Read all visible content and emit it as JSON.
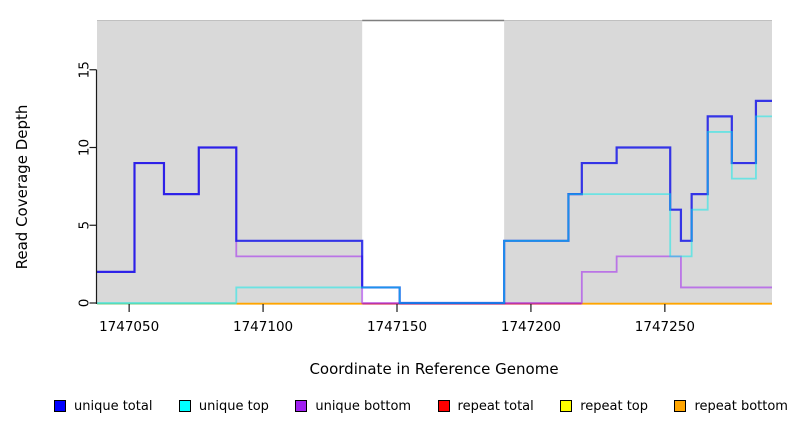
{
  "figure": {
    "background": "#ffffff"
  },
  "legend": {
    "position": "bottom",
    "items": [
      {
        "label": "unique total",
        "color": "#0000FF"
      },
      {
        "label": "unique top",
        "color": "#00FFFF"
      },
      {
        "label": "unique bottom",
        "color": "#A020F0"
      },
      {
        "label": "repeat total",
        "color": "#FF0000"
      },
      {
        "label": "repeat top",
        "color": "#FFFF00"
      },
      {
        "label": "repeat bottom",
        "color": "#FFA500"
      }
    ]
  },
  "chart_data": {
    "type": "line",
    "subtype": "step-coverage",
    "title": "",
    "xlabel": "Coordinate in Reference Genome",
    "ylabel": "Read Coverage Depth",
    "xlim": [
      1747038,
      1747290
    ],
    "ylim": [
      0,
      18.2
    ],
    "x_ticks": [
      1747050,
      1747100,
      1747150,
      1747200,
      1747250
    ],
    "y_ticks": [
      0,
      5,
      10,
      15
    ],
    "grid": false,
    "legend_position": "bottom",
    "shaded_regions": [
      {
        "x0": 1747038,
        "x1": 1747137,
        "color": "#d9d9d9",
        "edge_color": "#c0c0c0"
      },
      {
        "x0": 1747190,
        "x1": 1747290,
        "color": "#d9d9d9",
        "edge_color": "#c0c0c0"
      }
    ],
    "gap_top_edge": {
      "x0": 1747137,
      "x1": 1747190,
      "color": "#7f7f7f"
    },
    "draw_order": [
      "unique bottom",
      "unique total",
      "unique top"
    ],
    "series": [
      {
        "name": "unique total",
        "color": "#0000FF",
        "render_color": "rgba(10,10,232,0.8)",
        "width": 2.2,
        "steps": [
          [
            1747038,
            2
          ],
          [
            1747052,
            9
          ],
          [
            1747063,
            7
          ],
          [
            1747076,
            10
          ],
          [
            1747090,
            4
          ],
          [
            1747137,
            1
          ],
          [
            1747151,
            0
          ],
          [
            1747190,
            4
          ],
          [
            1747214,
            7
          ],
          [
            1747219,
            9
          ],
          [
            1747232,
            10
          ],
          [
            1747252,
            6
          ],
          [
            1747256,
            4
          ],
          [
            1747260,
            7
          ],
          [
            1747266,
            12
          ],
          [
            1747275,
            9
          ],
          [
            1747284,
            13
          ]
        ],
        "x_end": 1747290
      },
      {
        "name": "unique top",
        "color": "#00FFFF",
        "render_color": "rgba(0,235,235,0.5)",
        "width": 1.8,
        "steps": [
          [
            1747038,
            0
          ],
          [
            1747090,
            1
          ],
          [
            1747151,
            0
          ],
          [
            1747190,
            4
          ],
          [
            1747214,
            7
          ],
          [
            1747252,
            3
          ],
          [
            1747260,
            6
          ],
          [
            1747266,
            11
          ],
          [
            1747275,
            8
          ],
          [
            1747284,
            12
          ]
        ],
        "x_end": 1747290
      },
      {
        "name": "unique bottom",
        "color": "#A020F0",
        "render_color": "rgba(160,32,240,0.55)",
        "width": 1.8,
        "steps": [
          [
            1747038,
            2
          ],
          [
            1747052,
            9
          ],
          [
            1747063,
            7
          ],
          [
            1747076,
            10
          ],
          [
            1747090,
            3
          ],
          [
            1747137,
            0
          ],
          [
            1747219,
            2
          ],
          [
            1747232,
            3
          ],
          [
            1747256,
            1
          ]
        ],
        "x_end": 1747290
      },
      {
        "name": "repeat total",
        "color": "#FF0000",
        "steps": [
          [
            1747038,
            0
          ]
        ],
        "x_end": 1747290
      },
      {
        "name": "repeat top",
        "color": "#FFFF00",
        "steps": [
          [
            1747038,
            0
          ]
        ],
        "x_end": 1747290
      },
      {
        "name": "repeat bottom",
        "color": "#FFA500",
        "steps": [
          [
            1747038,
            0
          ]
        ],
        "x_end": 1747290
      }
    ],
    "baseline_visible_segments": [
      {
        "x0": 1747038,
        "x1": 1747090,
        "color": "#97d097"
      },
      {
        "x0": 1747090,
        "x1": 1747137,
        "color": "#ffa500"
      },
      {
        "x0": 1747137,
        "x1": 1747219,
        "color": "#d64560"
      },
      {
        "x0": 1747219,
        "x1": 1747290,
        "color": "#ffa500"
      }
    ]
  }
}
